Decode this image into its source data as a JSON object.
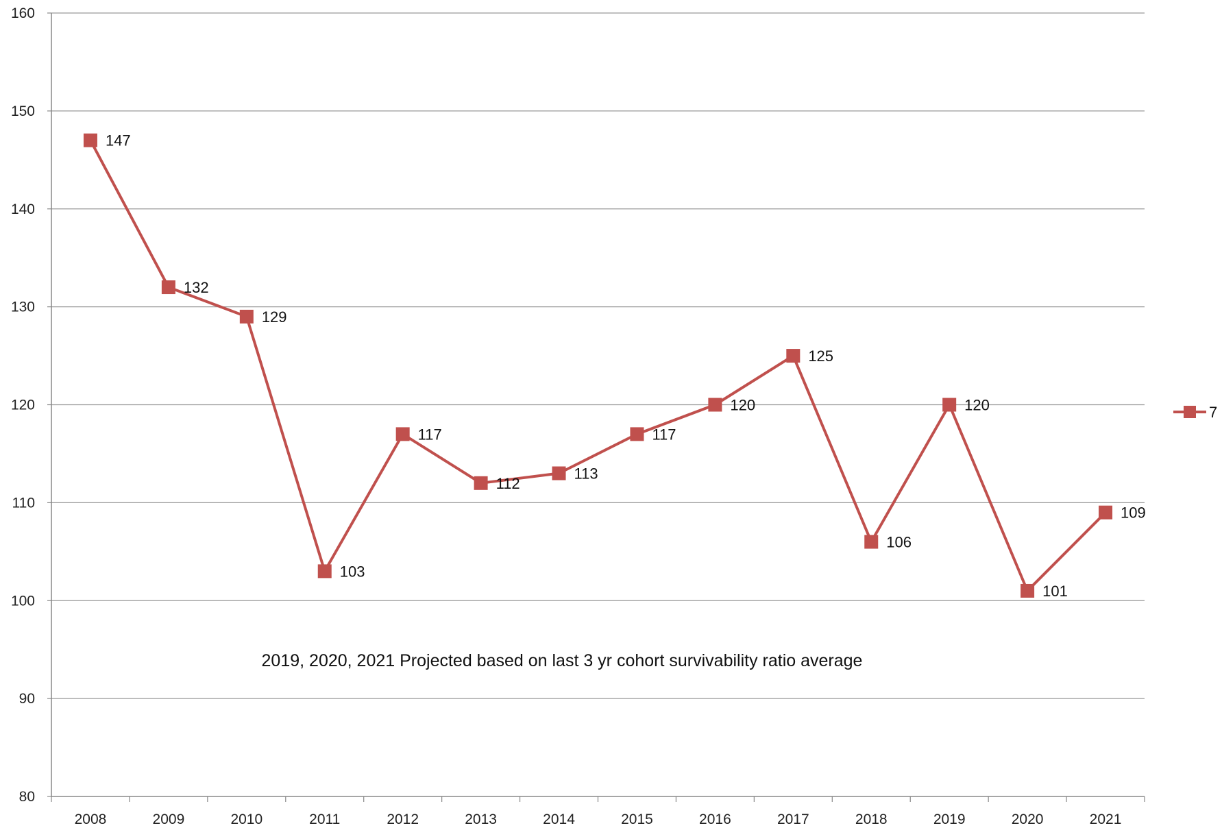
{
  "chart_data": {
    "type": "line",
    "title": "",
    "xlabel": "",
    "ylabel": "",
    "categories": [
      "2008",
      "2009",
      "2010",
      "2011",
      "2012",
      "2013",
      "2014",
      "2015",
      "2016",
      "2017",
      "2018",
      "2019",
      "2020",
      "2021"
    ],
    "series": [
      {
        "name": "7",
        "values": [
          147,
          132,
          129,
          103,
          117,
          112,
          113,
          117,
          120,
          125,
          106,
          120,
          101,
          109
        ],
        "color": "#c0504d",
        "marker": "square"
      }
    ],
    "data_labels": [
      "147",
      "132",
      "129",
      "103",
      "117",
      "112",
      "113",
      "117",
      "120",
      "125",
      "106",
      "120",
      "101",
      "109"
    ],
    "ylim": [
      80,
      160
    ],
    "yticks": [
      80,
      90,
      100,
      110,
      120,
      130,
      140,
      150,
      160
    ],
    "ytick_labels": [
      "80",
      "90",
      "100",
      "110",
      "120",
      "130",
      "140",
      "150",
      "160"
    ],
    "grid": "horizontal",
    "legend": {
      "placement": "right",
      "entries": [
        "7"
      ]
    },
    "annotation": "2019, 2020, 2021 Projected based on last 3 yr cohort survivability ratio average"
  },
  "colors": {
    "series": "#c0504d",
    "grid": "#999999",
    "axis": "#888888"
  }
}
